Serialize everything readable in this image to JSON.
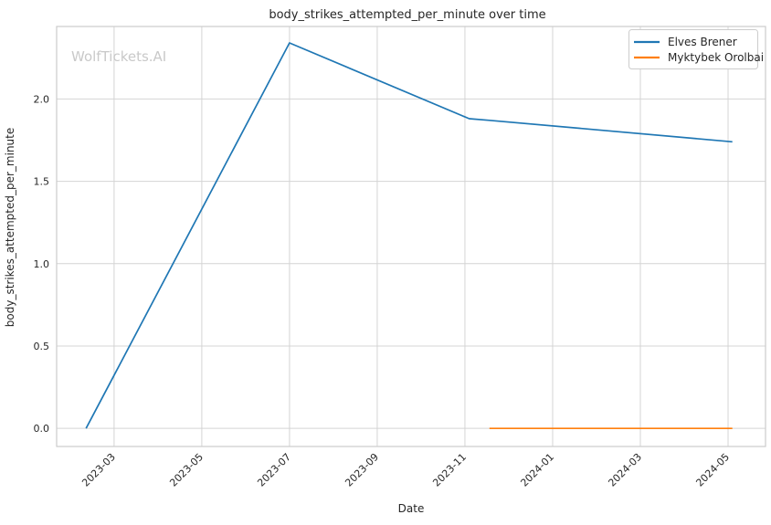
{
  "watermark": "WolfTickets.AI",
  "chart_data": {
    "type": "line",
    "title": "body_strikes_attempted_per_minute over time",
    "xlabel": "Date",
    "ylabel": "body_strikes_attempted_per_minute",
    "x_ticks": [
      "2023-03",
      "2023-05",
      "2023-07",
      "2023-09",
      "2023-11",
      "2024-01",
      "2024-03",
      "2024-05"
    ],
    "y_ticks": [
      "0.0",
      "0.5",
      "1.0",
      "1.5",
      "2.0"
    ],
    "xlim": [
      "2023-01-22",
      "2024-05-27"
    ],
    "ylim": [
      -0.11,
      2.44
    ],
    "grid": true,
    "legend_position": "upper right",
    "series": [
      {
        "name": "Elves Brener",
        "color": "#1f77b4",
        "x": [
          "2023-02-12",
          "2023-07-01",
          "2023-11-04",
          "2023-11-18",
          "2024-05-04"
        ],
        "y": [
          0.0,
          2.34,
          1.88,
          1.87,
          1.74
        ]
      },
      {
        "name": "Myktybek Orolbai",
        "color": "#ff7f0e",
        "x": [
          "2023-11-18",
          "2024-05-04"
        ],
        "y": [
          0.0,
          0.0
        ]
      }
    ]
  }
}
